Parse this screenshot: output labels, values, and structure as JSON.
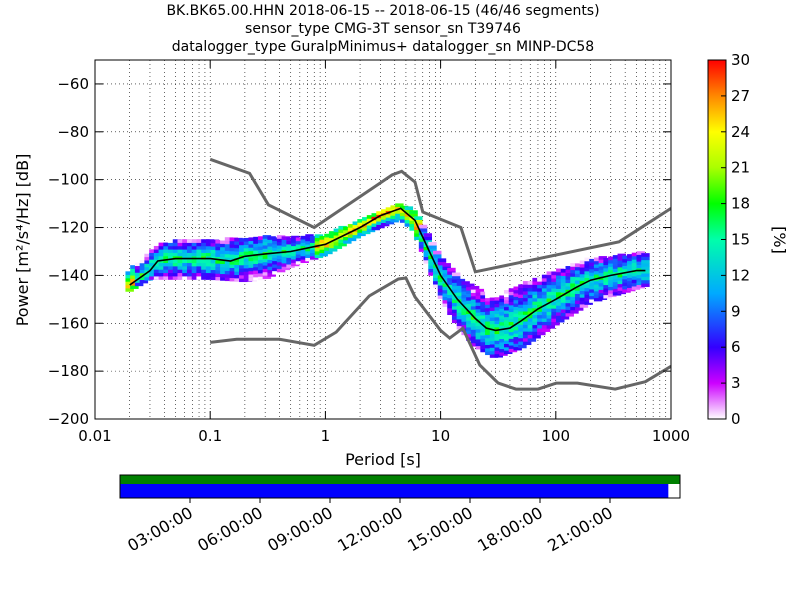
{
  "title": {
    "line1": "BK.BK65.00.HHN   2018-06-15 -- 2018-06-15  (46/46 segments)",
    "line2": "sensor_type CMG-3T sensor_sn T39746",
    "line3": "datalogger_type GuralpMinimus+ datalogger_sn MINP-DC58"
  },
  "chart_data": {
    "type": "heatmap",
    "xlabel": "Period [s]",
    "ylabel": "Power [m²/s⁴/Hz] [dB]",
    "xscale": "log",
    "xlim": [
      0.01,
      1000
    ],
    "ylim": [
      -200,
      -50
    ],
    "xticks": [
      {
        "value": 0.01,
        "label": "0.01"
      },
      {
        "value": 0.1,
        "label": "0.1"
      },
      {
        "value": 1,
        "label": "1"
      },
      {
        "value": 10,
        "label": "10"
      },
      {
        "value": 100,
        "label": "100"
      },
      {
        "value": 1000,
        "label": "1000"
      }
    ],
    "yticks": [
      {
        "value": -60,
        "label": "−60"
      },
      {
        "value": -80,
        "label": "−80"
      },
      {
        "value": -100,
        "label": "−100"
      },
      {
        "value": -120,
        "label": "−120"
      },
      {
        "value": -140,
        "label": "−140"
      },
      {
        "value": -160,
        "label": "−160"
      },
      {
        "value": -180,
        "label": "−180"
      },
      {
        "value": -200,
        "label": "−200"
      }
    ],
    "grid": "dotted",
    "colorbar": {
      "label": "[%]",
      "range": [
        0,
        30
      ],
      "ticks": [
        "0",
        "3",
        "6",
        "9",
        "12",
        "15",
        "18",
        "21",
        "24",
        "27",
        "30"
      ]
    },
    "noise_model_high": [
      [
        0.1,
        -91.5
      ],
      [
        0.22,
        -97.4
      ],
      [
        0.32,
        -110.5
      ],
      [
        0.8,
        -120
      ],
      [
        3.8,
        -98
      ],
      [
        4.6,
        -96.5
      ],
      [
        6,
        -101
      ],
      [
        7,
        -113.5
      ],
      [
        15,
        -120
      ],
      [
        20,
        -138.5
      ],
      [
        354,
        -126
      ],
      [
        1000,
        -112
      ]
    ],
    "noise_model_low": [
      [
        0.1,
        -168
      ],
      [
        0.17,
        -166.7
      ],
      [
        0.4,
        -166.7
      ],
      [
        0.8,
        -169.2
      ],
      [
        1.24,
        -163.7
      ],
      [
        2.4,
        -148.6
      ],
      [
        4.3,
        -141.5
      ],
      [
        5,
        -141.1
      ],
      [
        6,
        -149
      ],
      [
        10,
        -163
      ],
      [
        12,
        -166.2
      ],
      [
        15.6,
        -162.1
      ],
      [
        21.9,
        -177.5
      ],
      [
        31.6,
        -185
      ],
      [
        45,
        -187.5
      ],
      [
        70,
        -187.5
      ],
      [
        101,
        -185
      ],
      [
        154,
        -185
      ],
      [
        328,
        -187.5
      ],
      [
        600,
        -184.4
      ],
      [
        1000,
        -178
      ]
    ],
    "mean_curve": [
      [
        0.02,
        -144
      ],
      [
        0.03,
        -138
      ],
      [
        0.035,
        -134
      ],
      [
        0.05,
        -133
      ],
      [
        0.1,
        -133
      ],
      [
        0.15,
        -134
      ],
      [
        0.2,
        -132
      ],
      [
        0.3,
        -131
      ],
      [
        0.5,
        -130
      ],
      [
        1,
        -127
      ],
      [
        2,
        -120
      ],
      [
        3,
        -115
      ],
      [
        4.5,
        -112
      ],
      [
        6,
        -117
      ],
      [
        8,
        -130
      ],
      [
        10,
        -140
      ],
      [
        14,
        -150
      ],
      [
        20,
        -158
      ],
      [
        25,
        -162
      ],
      [
        30,
        -163
      ],
      [
        40,
        -162
      ],
      [
        50,
        -159
      ],
      [
        70,
        -154
      ],
      [
        100,
        -150
      ],
      [
        150,
        -145
      ],
      [
        200,
        -142
      ],
      [
        300,
        -140
      ],
      [
        500,
        -138
      ],
      [
        600,
        -138
      ]
    ],
    "psd_band": [
      {
        "period": 0.02,
        "center": -142,
        "spread": 4
      },
      {
        "period": 0.03,
        "center": -135,
        "spread": 6
      },
      {
        "period": 0.05,
        "center": -133,
        "spread": 8
      },
      {
        "period": 0.1,
        "center": -133,
        "spread": 8
      },
      {
        "period": 0.2,
        "center": -133,
        "spread": 9
      },
      {
        "period": 0.3,
        "center": -132,
        "spread": 9
      },
      {
        "period": 0.5,
        "center": -130,
        "spread": 6
      },
      {
        "period": 1,
        "center": -127,
        "spread": 4
      },
      {
        "period": 2,
        "center": -120,
        "spread": 3
      },
      {
        "period": 4.5,
        "center": -113,
        "spread": 3
      },
      {
        "period": 6,
        "center": -117,
        "spread": 4
      },
      {
        "period": 8,
        "center": -130,
        "spread": 6
      },
      {
        "period": 10,
        "center": -140,
        "spread": 8
      },
      {
        "period": 14,
        "center": -150,
        "spread": 10
      },
      {
        "period": 20,
        "center": -157,
        "spread": 12
      },
      {
        "period": 30,
        "center": -161,
        "spread": 13
      },
      {
        "period": 50,
        "center": -157,
        "spread": 13
      },
      {
        "period": 100,
        "center": -149,
        "spread": 11
      },
      {
        "period": 200,
        "center": -142,
        "spread": 9
      },
      {
        "period": 600,
        "center": -137,
        "spread": 7
      }
    ]
  },
  "timeline": {
    "labels": [
      "03:00:00",
      "06:00:00",
      "09:00:00",
      "12:00:00",
      "15:00:00",
      "18:00:00",
      "21:00:00"
    ],
    "hours": [
      3,
      6,
      9,
      12,
      15,
      18,
      21
    ],
    "range_hours": [
      0,
      24
    ],
    "data_coverage": [
      [
        0,
        24
      ]
    ],
    "processed_coverage": [
      [
        0,
        23.5
      ]
    ],
    "colors": {
      "data": "#008000",
      "processed": "#0000ff"
    }
  }
}
